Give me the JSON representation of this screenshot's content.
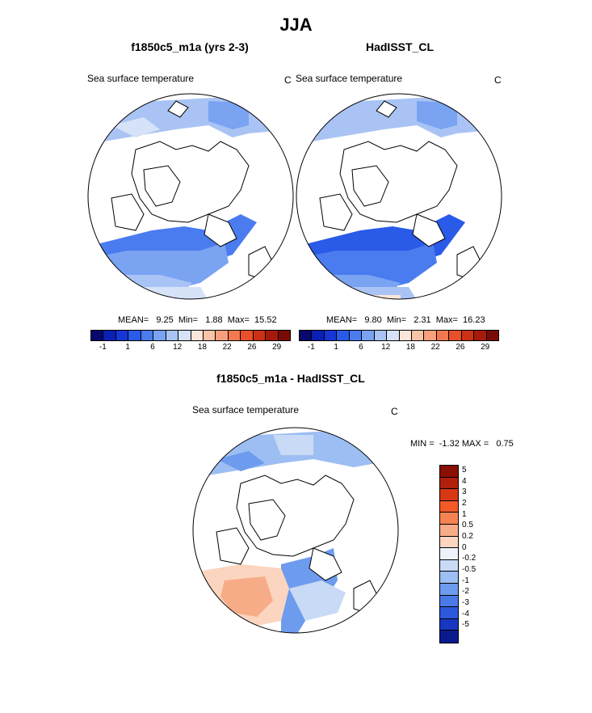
{
  "title": "JJA",
  "panels": [
    {
      "title": "f1850c5_m1a (yrs 2-3)",
      "variable": "Sea surface temperature",
      "unit": "C",
      "stats": "MEAN=   9.25  Min=   1.88  Max=  15.52"
    },
    {
      "title": "HadISST_CL",
      "variable": "Sea surface temperature",
      "unit": "C",
      "stats": "MEAN=   9.80  Min=   2.31  Max=  16.23"
    }
  ],
  "temp_colorbar": {
    "colors": [
      "#08086e",
      "#0a1fb3",
      "#1736d6",
      "#2a5ae8",
      "#4a7cf0",
      "#7aa3f2",
      "#a9c4f4",
      "#d6e2f7",
      "#fce6d8",
      "#f8c3a7",
      "#f7a07e",
      "#f2794f",
      "#e8502a",
      "#cc3114",
      "#a51a0a",
      "#7a0b04"
    ],
    "labels": [
      "-1",
      "1",
      "6",
      "12",
      "18",
      "22",
      "26",
      "29"
    ]
  },
  "diff_panel": {
    "title": "f1850c5_m1a - HadISST_CL",
    "variable": "Sea surface temperature",
    "unit": "C",
    "stats": "MIN =  -1.32 MAX =   0.75",
    "colorbar": {
      "colors": [
        "#8a0f04",
        "#b0200c",
        "#d83814",
        "#f25a28",
        "#f58352",
        "#f7ac88",
        "#fbd5c0",
        "#eef2fb",
        "#c9daf6",
        "#9dbef2",
        "#6d9bee",
        "#4a7ae8",
        "#2c58de",
        "#1737c2",
        "#0a1a8e"
      ],
      "labels": [
        "5",
        "4",
        "3",
        "2",
        "1",
        "0.5",
        "0.2",
        "0",
        "-0.2",
        "-0.5",
        "-1",
        "-2",
        "-3",
        "-4",
        "-5"
      ]
    }
  }
}
